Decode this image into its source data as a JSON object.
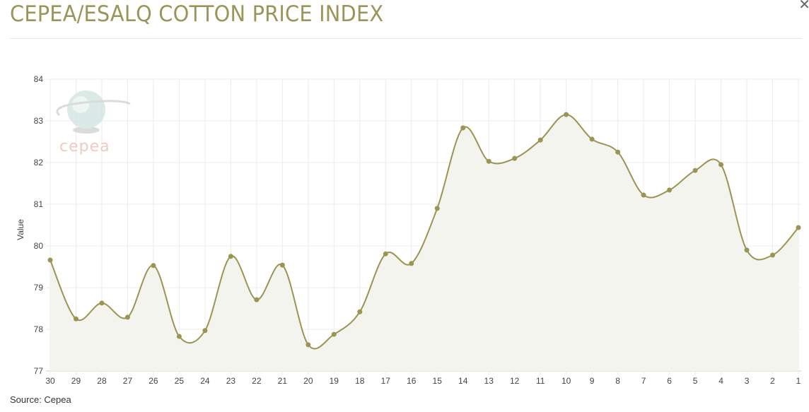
{
  "header": {
    "title": "CEPEA/ESALQ COTTON PRICE INDEX",
    "close_icon": "close-icon"
  },
  "footer": {
    "source": "Source: Cepea"
  },
  "logo": {
    "text": "cepea"
  },
  "colors": {
    "line": "#9b9453",
    "marker": "#9b9453",
    "area": "#f4f4ee",
    "title": "#9a9558",
    "grid": "#ececec"
  },
  "chart_data": {
    "type": "line",
    "title": "CEPEA/ESALQ COTTON PRICE INDEX",
    "xlabel": "",
    "ylabel": "Value",
    "ylim": [
      77,
      84
    ],
    "yticks": [
      77,
      78,
      79,
      80,
      81,
      82,
      83,
      84
    ],
    "grid": true,
    "legend": "none",
    "categories": [
      "30",
      "29",
      "28",
      "27",
      "26",
      "25",
      "24",
      "23",
      "22",
      "21",
      "20",
      "19",
      "18",
      "17",
      "16",
      "15",
      "14",
      "13",
      "12",
      "11",
      "10",
      "9",
      "8",
      "7",
      "6",
      "5",
      "4",
      "3",
      "2",
      "1"
    ],
    "series": [
      {
        "name": "Value",
        "values": [
          79.66,
          78.25,
          78.63,
          78.29,
          79.53,
          77.83,
          77.97,
          79.75,
          78.71,
          79.54,
          77.63,
          77.88,
          78.42,
          79.81,
          79.58,
          80.9,
          82.83,
          82.03,
          82.1,
          82.54,
          83.15,
          82.56,
          82.25,
          81.22,
          81.34,
          81.81,
          81.95,
          79.9,
          79.78,
          80.44
        ]
      }
    ]
  }
}
